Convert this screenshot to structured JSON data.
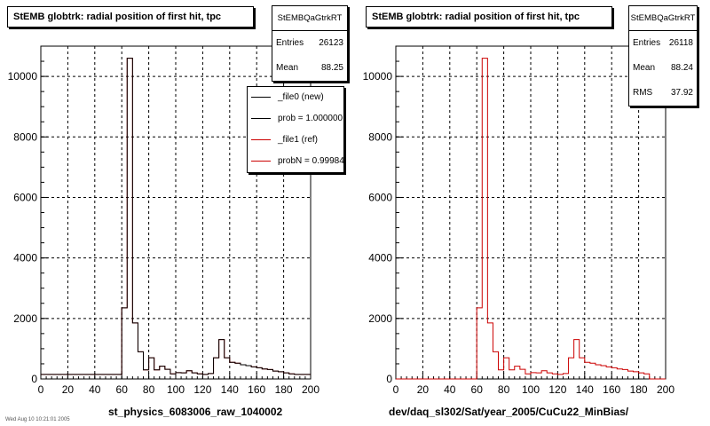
{
  "colors": {
    "new": "#000000",
    "ref": "#cc0000",
    "grid": "#000000"
  },
  "left_panel": {
    "title": "StEMB globtrk: radial position of first hit, tpc",
    "stats": {
      "name": "StEMBQaGtrkRT",
      "rows": [
        [
          "Entries",
          "26123"
        ],
        [
          "Mean",
          "88.25"
        ]
      ]
    },
    "legend": [
      "_file0 (new)",
      "prob = 1.000000",
      "_file1 (ref)",
      "probN = 0.99984"
    ],
    "xtitle": "st_physics_6083006_raw_1040002",
    "stamp": "Wed Aug 10 10:21:01 2005"
  },
  "right_panel": {
    "title": "StEMB globtrk: radial position of first hit, tpc",
    "stats": {
      "name": "StEMBQaGtrkRT",
      "rows": [
        [
          "Entries",
          "26118"
        ],
        [
          "Mean",
          "88.24"
        ],
        [
          "RMS",
          "37.92"
        ]
      ]
    },
    "xtitle": "dev/daq_sl302/Sat/year_2005/CuCu22_MinBias/"
  },
  "chart_data": [
    {
      "type": "histogram",
      "title": "StEMB globtrk: radial position of first hit, tpc",
      "xlabel": "st_physics_6083006_raw_1040002",
      "xlim": [
        0,
        200
      ],
      "ylim": [
        0,
        11000
      ],
      "grid": true,
      "x_ticks": [
        0,
        20,
        40,
        60,
        80,
        100,
        120,
        140,
        160,
        180,
        200
      ],
      "y_ticks": [
        0,
        2000,
        4000,
        6000,
        8000,
        10000
      ],
      "bin_width": 4,
      "series": [
        {
          "name": "_file1 (ref)",
          "color": "#cc0000",
          "values": [
            150,
            150,
            150,
            150,
            150,
            150,
            150,
            150,
            150,
            150,
            150,
            150,
            150,
            150,
            150,
            2350,
            10600,
            1850,
            900,
            300,
            700,
            300,
            420,
            320,
            170,
            210,
            200,
            270,
            200,
            170,
            150,
            180,
            700,
            1300,
            700,
            550,
            520,
            470,
            440,
            400,
            370,
            330,
            310,
            260,
            240,
            200,
            170,
            150,
            150,
            150
          ]
        },
        {
          "name": "_file0 (new)",
          "color": "#000000",
          "values": [
            150,
            150,
            150,
            150,
            150,
            150,
            150,
            150,
            150,
            150,
            150,
            150,
            150,
            150,
            150,
            2350,
            10600,
            1850,
            900,
            300,
            700,
            300,
            420,
            320,
            170,
            210,
            200,
            270,
            200,
            170,
            150,
            180,
            700,
            1300,
            700,
            550,
            520,
            470,
            440,
            400,
            370,
            330,
            310,
            260,
            240,
            200,
            170,
            150,
            150,
            150
          ]
        }
      ]
    },
    {
      "type": "histogram",
      "title": "StEMB globtrk: radial position of first hit, tpc",
      "xlabel": "dev/daq_sl302/Sat/year_2005/CuCu22_MinBias/",
      "xlim": [
        0,
        200
      ],
      "ylim": [
        0,
        11000
      ],
      "grid": true,
      "x_ticks": [
        0,
        20,
        40,
        60,
        80,
        100,
        120,
        140,
        160,
        180,
        200
      ],
      "y_ticks": [
        0,
        2000,
        4000,
        6000,
        8000,
        10000
      ],
      "bin_width": 4,
      "series": [
        {
          "name": "",
          "color": "#cc0000",
          "values": [
            0,
            0,
            0,
            0,
            0,
            0,
            0,
            0,
            0,
            0,
            0,
            0,
            0,
            0,
            0,
            2350,
            10600,
            1850,
            900,
            300,
            700,
            300,
            420,
            320,
            170,
            210,
            200,
            270,
            200,
            170,
            150,
            180,
            700,
            1300,
            700,
            550,
            520,
            470,
            440,
            400,
            370,
            330,
            310,
            260,
            240,
            200,
            170,
            0,
            0,
            0
          ]
        }
      ]
    }
  ]
}
